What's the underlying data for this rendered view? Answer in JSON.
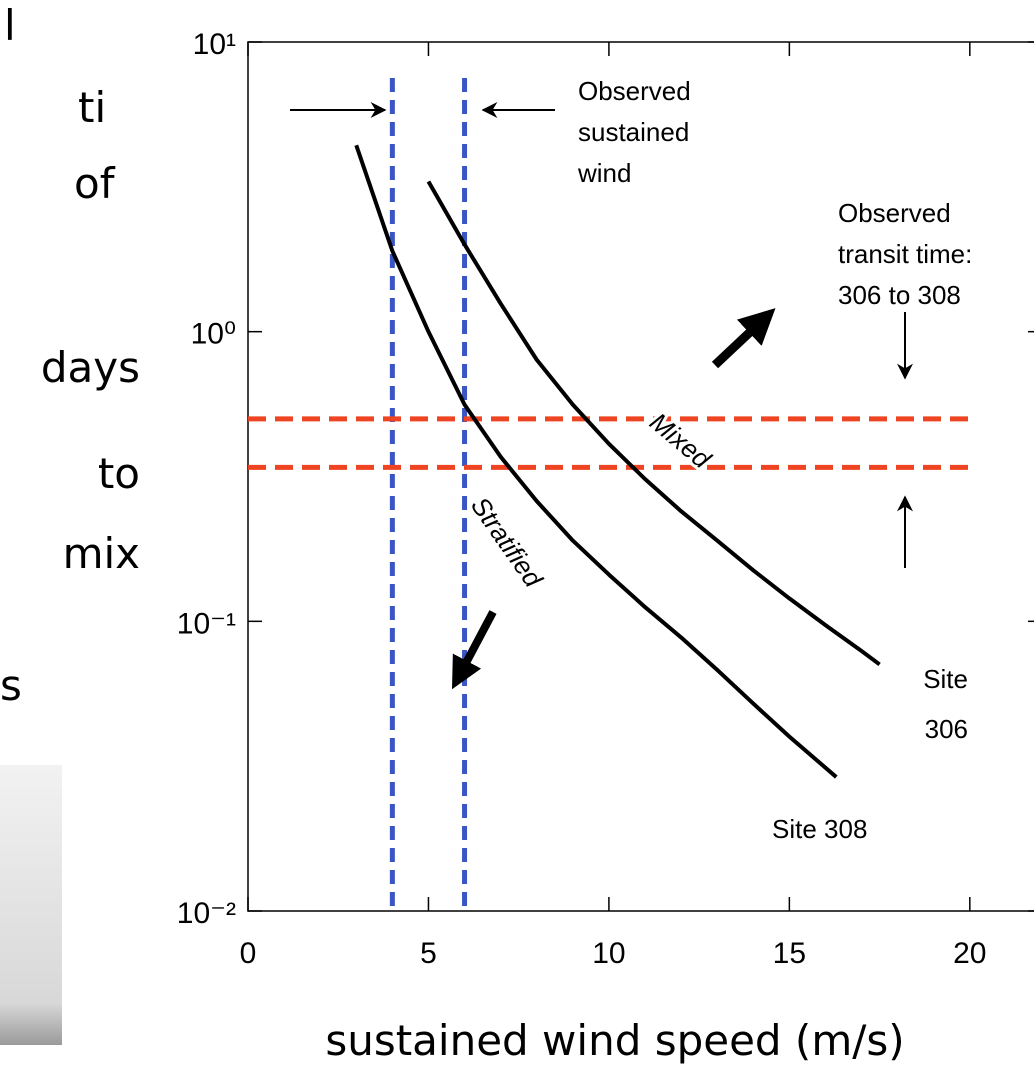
{
  "slide_text": {
    "fragments": [
      "l",
      "ti",
      "of",
      "s"
    ],
    "y_label_lines": [
      "days",
      "to",
      "mix"
    ]
  },
  "chart_data": {
    "type": "line",
    "x_label": "sustained wind speed (m/s)",
    "xlim": [
      0,
      22
    ],
    "xticks": [
      0,
      5,
      10,
      15,
      20
    ],
    "ylim": [
      0.01,
      10
    ],
    "log_y": true,
    "yticks": [
      {
        "value": 0.01,
        "label": "10⁻²"
      },
      {
        "value": 0.1,
        "label": "10⁻¹"
      },
      {
        "value": 1,
        "label": "10⁰"
      },
      {
        "value": 10,
        "label": "10¹"
      }
    ],
    "series": [
      {
        "name": "Site 308",
        "color": "#000000",
        "x": [
          3,
          4,
          5,
          6,
          7,
          8,
          9,
          10,
          11,
          12,
          13,
          14,
          15,
          16.3
        ],
        "values": [
          4.4,
          1.9,
          1.0,
          0.56,
          0.37,
          0.26,
          0.19,
          0.145,
          0.112,
          0.088,
          0.068,
          0.052,
          0.04,
          0.029
        ]
      },
      {
        "name": "Site 306",
        "color": "#000000",
        "x": [
          5,
          6,
          7,
          8,
          9,
          10,
          11,
          12,
          13,
          14,
          15,
          16,
          17,
          17.5
        ],
        "values": [
          3.3,
          2.0,
          1.25,
          0.8,
          0.56,
          0.41,
          0.31,
          0.24,
          0.19,
          0.15,
          0.12,
          0.097,
          0.079,
          0.071
        ]
      }
    ],
    "vlines": {
      "color": "#3a55c4",
      "values": [
        4,
        6
      ]
    },
    "hlines": {
      "color": "#ee4422",
      "values": [
        0.5,
        0.34
      ]
    },
    "annotations": {
      "wind": [
        "Observed",
        "sustained",
        "wind"
      ],
      "transit": [
        "Observed",
        "transit time:",
        "306 to 308"
      ],
      "mixed": "Mixed",
      "stratified": "Stratified",
      "site306": [
        "Site",
        "306"
      ],
      "site308": "Site 308"
    }
  }
}
